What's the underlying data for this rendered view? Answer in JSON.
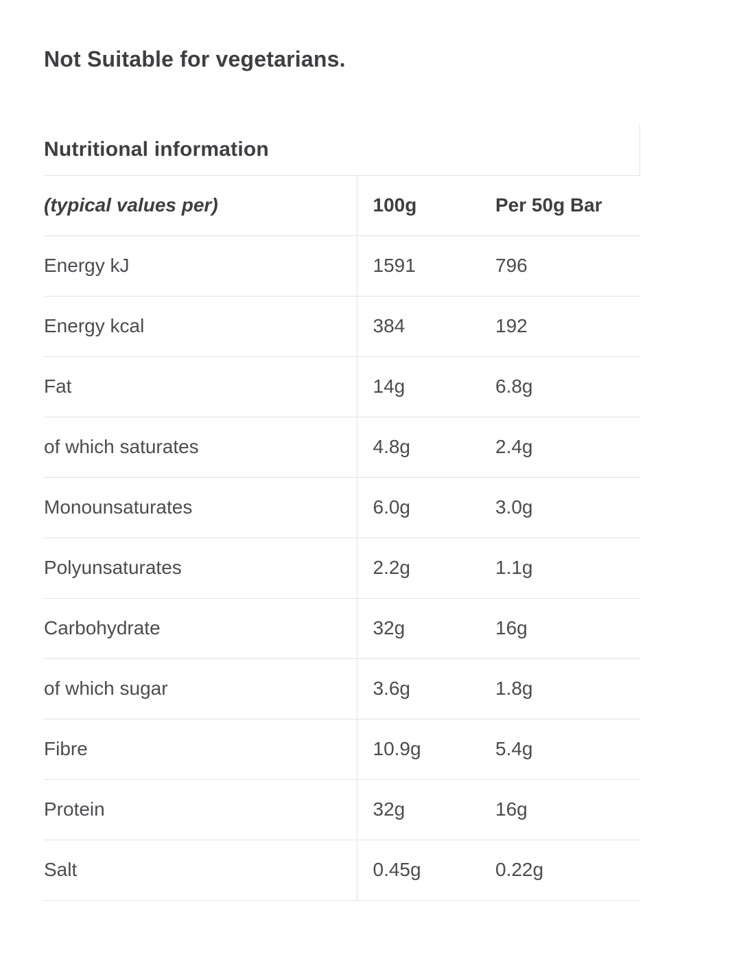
{
  "suitability_note": "Not Suitable for vegetarians.",
  "table": {
    "title": "Nutritional information",
    "header": {
      "label": "(typical values per)",
      "col_100g": "100g",
      "col_bar": "Per 50g Bar"
    },
    "rows": [
      {
        "label": "Energy kJ",
        "per_100g": "1591",
        "per_bar": "796"
      },
      {
        "label": "Energy kcal",
        "per_100g": "384",
        "per_bar": "192"
      },
      {
        "label": "Fat",
        "per_100g": "14g",
        "per_bar": "6.8g"
      },
      {
        "label": "of which saturates",
        "per_100g": "4.8g",
        "per_bar": "2.4g"
      },
      {
        "label": "Monounsaturates",
        "per_100g": "6.0g",
        "per_bar": "3.0g"
      },
      {
        "label": "Polyunsaturates",
        "per_100g": "2.2g",
        "per_bar": "1.1g"
      },
      {
        "label": "Carbohydrate",
        "per_100g": "32g",
        "per_bar": "16g"
      },
      {
        "label": "of which sugar",
        "per_100g": "3.6g",
        "per_bar": "1.8g"
      },
      {
        "label": "Fibre",
        "per_100g": "10.9g",
        "per_bar": "5.4g"
      },
      {
        "label": "Protein",
        "per_100g": "32g",
        "per_bar": "16g"
      },
      {
        "label": "Salt",
        "per_100g": "0.45g",
        "per_bar": "0.22g"
      }
    ]
  },
  "colors": {
    "page_bg": "#ffffff",
    "heading_text": "#3e3e43",
    "body_text": "#4b4b51",
    "border": "#e2e2e2"
  }
}
